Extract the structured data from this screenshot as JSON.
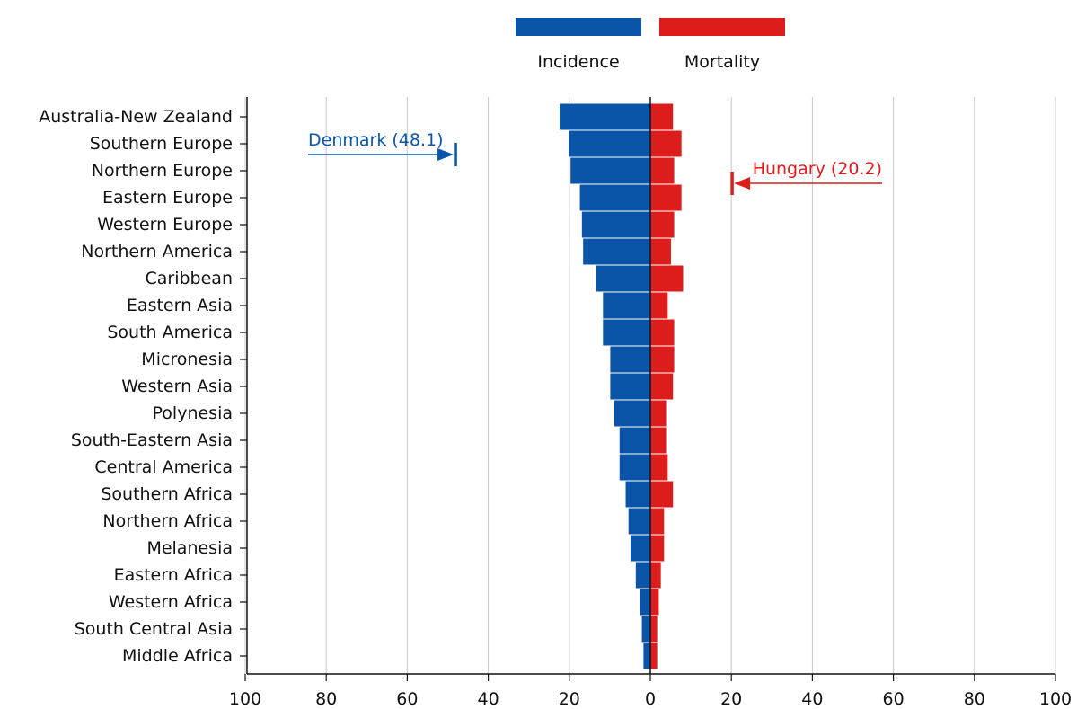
{
  "chart_data": {
    "type": "bar",
    "orientation": "horizontal-diverging",
    "categories": [
      "Australia-New Zealand",
      "Southern Europe",
      "Northern Europe",
      "Eastern Europe",
      "Western Europe",
      "Northern America",
      "Caribbean",
      "Eastern Asia",
      "South America",
      "Micronesia",
      "Western Asia",
      "Polynesia",
      "South-Eastern Asia",
      "Central America",
      "Southern Africa",
      "Northern Africa",
      "Melanesia",
      "Eastern Africa",
      "Western Africa",
      "South Central Asia",
      "Middle Africa"
    ],
    "series": [
      {
        "name": "Incidence",
        "color": "#0b55a8",
        "direction": "left",
        "values": [
          22.5,
          20.2,
          19.8,
          17.5,
          17.0,
          16.7,
          13.5,
          11.8,
          11.8,
          10.0,
          10.0,
          9.0,
          7.7,
          7.7,
          6.2,
          5.5,
          5.0,
          3.7,
          2.7,
          2.2,
          1.8
        ]
      },
      {
        "name": "Mortality",
        "color": "#dd1c1c",
        "direction": "right",
        "values": [
          5.7,
          7.8,
          6.0,
          7.8,
          6.0,
          5.2,
          8.2,
          4.4,
          6.0,
          6.0,
          5.7,
          4.0,
          4.0,
          4.4,
          5.7,
          3.5,
          3.5,
          2.7,
          2.2,
          1.8,
          1.8
        ]
      }
    ],
    "axis": {
      "ticks": [
        "100",
        "80",
        "60",
        "40",
        "20",
        "0",
        "20",
        "40",
        "60",
        "80",
        "100"
      ],
      "range": [
        -100,
        100
      ]
    },
    "grid": true,
    "legend": {
      "placement": "top-center"
    },
    "annotations": [
      {
        "text": "Denmark (48.1)",
        "value": -48.1,
        "row": "Northern Europe",
        "color": "#0b55a8"
      },
      {
        "text": "Hungary (20.2)",
        "value": 20.2,
        "row": "Eastern Europe",
        "color": "#dd1c1c"
      }
    ]
  }
}
